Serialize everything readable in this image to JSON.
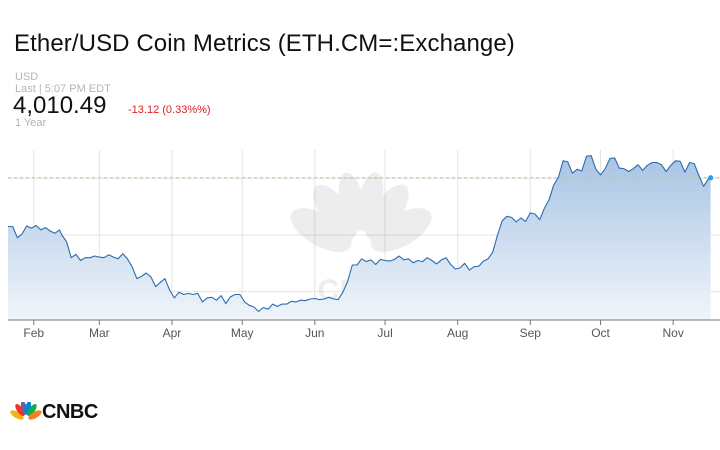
{
  "header": {
    "title": "Ether/USD Coin Metrics (ETH.CM=:Exchange)",
    "currency": "USD",
    "last_updated": "Last | 5:07 PM EDT",
    "price": "4,010.49",
    "change": "-13.12 (0.33%%)",
    "period": "1 Year"
  },
  "brand": {
    "name": "CNBC",
    "watermark": "CNBC"
  },
  "colors": {
    "line": "#2b6cb0",
    "fill_top": "#a7c4e4",
    "fill_bottom": "#f1f5fa",
    "change_negative": "#e02020",
    "last_price_line": "#d4c074",
    "grid": "#e4e4e4"
  },
  "chart_data": {
    "type": "area",
    "title": "",
    "xlabel": "",
    "ylabel": "",
    "x_tick_labels": [
      "Feb",
      "Mar",
      "Apr",
      "May",
      "Jun",
      "Jul",
      "Aug",
      "Sep",
      "Oct",
      "Nov"
    ],
    "x_range": [
      "2021-01-21",
      "2021-11-21"
    ],
    "ylim": [
      1500,
      4500
    ],
    "grid": true,
    "legend": "none",
    "last_value": 4010.49,
    "series": [
      {
        "points": [
          [
            "2021-01-21",
            3150
          ],
          [
            "2021-01-23",
            3150
          ],
          [
            "2021-01-25",
            2950
          ],
          [
            "2021-01-27",
            3020
          ],
          [
            "2021-01-29",
            3160
          ],
          [
            "2021-01-31",
            3120
          ],
          [
            "2021-02-02",
            3170
          ],
          [
            "2021-02-04",
            3090
          ],
          [
            "2021-02-06",
            3130
          ],
          [
            "2021-02-08",
            3070
          ],
          [
            "2021-02-10",
            3030
          ],
          [
            "2021-02-12",
            3090
          ],
          [
            "2021-02-13",
            3000
          ],
          [
            "2021-02-15",
            2880
          ],
          [
            "2021-02-17",
            2600
          ],
          [
            "2021-02-19",
            2660
          ],
          [
            "2021-02-21",
            2550
          ],
          [
            "2021-02-23",
            2600
          ],
          [
            "2021-02-25",
            2600
          ],
          [
            "2021-02-27",
            2630
          ],
          [
            "2021-03-01",
            2610
          ],
          [
            "2021-03-03",
            2600
          ],
          [
            "2021-03-05",
            2650
          ],
          [
            "2021-03-07",
            2610
          ],
          [
            "2021-03-09",
            2580
          ],
          [
            "2021-03-11",
            2670
          ],
          [
            "2021-03-13",
            2580
          ],
          [
            "2021-03-15",
            2440
          ],
          [
            "2021-03-17",
            2230
          ],
          [
            "2021-03-19",
            2270
          ],
          [
            "2021-03-21",
            2330
          ],
          [
            "2021-03-23",
            2260
          ],
          [
            "2021-03-25",
            2090
          ],
          [
            "2021-03-27",
            2160
          ],
          [
            "2021-03-29",
            2230
          ],
          [
            "2021-03-31",
            2030
          ],
          [
            "2021-04-02",
            1890
          ],
          [
            "2021-04-04",
            1990
          ],
          [
            "2021-04-06",
            1950
          ],
          [
            "2021-04-08",
            1970
          ],
          [
            "2021-04-10",
            1950
          ],
          [
            "2021-04-12",
            1970
          ],
          [
            "2021-04-14",
            1820
          ],
          [
            "2021-04-16",
            1890
          ],
          [
            "2021-04-18",
            1900
          ],
          [
            "2021-04-20",
            1850
          ],
          [
            "2021-04-22",
            1930
          ],
          [
            "2021-04-24",
            1790
          ],
          [
            "2021-04-26",
            1910
          ],
          [
            "2021-04-28",
            1950
          ],
          [
            "2021-04-30",
            1950
          ],
          [
            "2021-05-02",
            1820
          ],
          [
            "2021-05-04",
            1760
          ],
          [
            "2021-05-06",
            1730
          ],
          [
            "2021-05-08",
            1650
          ],
          [
            "2021-05-10",
            1720
          ],
          [
            "2021-05-12",
            1690
          ],
          [
            "2021-05-14",
            1780
          ],
          [
            "2021-05-16",
            1740
          ],
          [
            "2021-05-18",
            1780
          ],
          [
            "2021-05-20",
            1780
          ],
          [
            "2021-05-22",
            1830
          ],
          [
            "2021-05-24",
            1820
          ],
          [
            "2021-05-26",
            1850
          ],
          [
            "2021-05-28",
            1840
          ],
          [
            "2021-05-30",
            1870
          ],
          [
            "2021-06-01",
            1880
          ],
          [
            "2021-06-03",
            1860
          ],
          [
            "2021-06-05",
            1870
          ],
          [
            "2021-06-07",
            1900
          ],
          [
            "2021-06-09",
            1870
          ],
          [
            "2021-06-11",
            1860
          ],
          [
            "2021-06-13",
            1990
          ],
          [
            "2021-06-15",
            2180
          ],
          [
            "2021-06-17",
            2470
          ],
          [
            "2021-06-19",
            2470
          ],
          [
            "2021-06-21",
            2580
          ],
          [
            "2021-06-23",
            2530
          ],
          [
            "2021-06-25",
            2560
          ],
          [
            "2021-06-27",
            2480
          ],
          [
            "2021-06-29",
            2570
          ],
          [
            "2021-07-01",
            2550
          ],
          [
            "2021-07-03",
            2540
          ],
          [
            "2021-07-05",
            2570
          ],
          [
            "2021-07-07",
            2630
          ],
          [
            "2021-07-09",
            2560
          ],
          [
            "2021-07-11",
            2580
          ],
          [
            "2021-07-13",
            2510
          ],
          [
            "2021-07-15",
            2550
          ],
          [
            "2021-07-17",
            2530
          ],
          [
            "2021-07-19",
            2600
          ],
          [
            "2021-07-21",
            2550
          ],
          [
            "2021-07-23",
            2490
          ],
          [
            "2021-07-25",
            2560
          ],
          [
            "2021-07-27",
            2600
          ],
          [
            "2021-07-29",
            2480
          ],
          [
            "2021-07-31",
            2400
          ],
          [
            "2021-08-02",
            2420
          ],
          [
            "2021-08-04",
            2500
          ],
          [
            "2021-08-06",
            2380
          ],
          [
            "2021-08-08",
            2440
          ],
          [
            "2021-08-10",
            2450
          ],
          [
            "2021-08-12",
            2540
          ],
          [
            "2021-08-14",
            2580
          ],
          [
            "2021-08-16",
            2700
          ],
          [
            "2021-08-18",
            3000
          ],
          [
            "2021-08-20",
            3250
          ],
          [
            "2021-08-22",
            3330
          ],
          [
            "2021-08-24",
            3310
          ],
          [
            "2021-08-26",
            3230
          ],
          [
            "2021-08-28",
            3300
          ],
          [
            "2021-08-30",
            3240
          ],
          [
            "2021-09-01",
            3390
          ],
          [
            "2021-09-03",
            3370
          ],
          [
            "2021-09-05",
            3270
          ],
          [
            "2021-09-07",
            3470
          ],
          [
            "2021-09-09",
            3620
          ],
          [
            "2021-09-11",
            3880
          ],
          [
            "2021-09-13",
            4020
          ],
          [
            "2021-09-15",
            4310
          ],
          [
            "2021-09-17",
            4290
          ],
          [
            "2021-09-19",
            4090
          ],
          [
            "2021-09-21",
            4160
          ],
          [
            "2021-09-23",
            4130
          ],
          [
            "2021-09-25",
            4390
          ],
          [
            "2021-09-27",
            4400
          ],
          [
            "2021-09-29",
            4160
          ],
          [
            "2021-10-01",
            4060
          ],
          [
            "2021-10-03",
            4170
          ],
          [
            "2021-10-05",
            4350
          ],
          [
            "2021-10-07",
            4360
          ],
          [
            "2021-10-09",
            4180
          ],
          [
            "2021-10-11",
            4170
          ],
          [
            "2021-10-13",
            4120
          ],
          [
            "2021-10-15",
            4170
          ],
          [
            "2021-10-17",
            4240
          ],
          [
            "2021-10-19",
            4140
          ],
          [
            "2021-10-21",
            4230
          ],
          [
            "2021-10-23",
            4280
          ],
          [
            "2021-10-25",
            4280
          ],
          [
            "2021-10-27",
            4240
          ],
          [
            "2021-10-29",
            4120
          ],
          [
            "2021-10-31",
            4230
          ],
          [
            "2021-11-02",
            4310
          ],
          [
            "2021-11-04",
            4300
          ],
          [
            "2021-11-06",
            4110
          ],
          [
            "2021-11-08",
            4280
          ],
          [
            "2021-11-10",
            4260
          ],
          [
            "2021-11-12",
            4050
          ],
          [
            "2021-11-14",
            3860
          ],
          [
            "2021-11-16",
            3990
          ],
          [
            "2021-11-17",
            4010
          ]
        ]
      }
    ]
  }
}
